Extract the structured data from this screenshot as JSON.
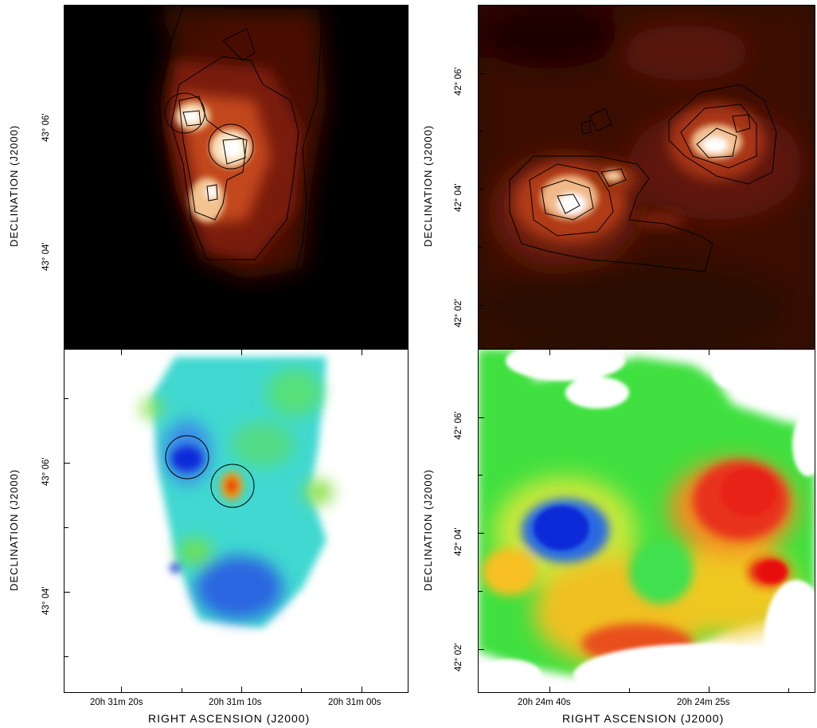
{
  "left_column": {
    "ylabel_top": "DECLINATION (J2000)",
    "ylabel_bottom": "DECLINATION (J2000)",
    "ytick_top_1": "43° 06'",
    "ytick_top_2": "43° 04'",
    "ytick_bottom_1": "43° 06'",
    "ytick_bottom_2": "43° 04'",
    "xticks": [
      "20h 31m 20s",
      "20h 31m 10s",
      "20h 31m 00s"
    ],
    "xlabel": "RIGHT ASCENSION (J2000)"
  },
  "right_column": {
    "ylabel_top": "DECLINATION (J2000)",
    "ylabel_bottom": "DECLINATION (J2000)",
    "ytick_top_1": "42° 06'",
    "ytick_top_2": "42° 04'",
    "ytick_top_3": "42° 02'",
    "ytick_bottom_1": "42° 06'",
    "ytick_bottom_2": "42° 04'",
    "ytick_bottom_3": "42° 02'",
    "xticks": [
      "20h 24m 40s",
      "20h 24m 25s"
    ],
    "xlabel": "RIGHT ASCENSION (J2000)"
  },
  "colors": {
    "intensity_background": "#000000",
    "intensity_peak": "#ffffff",
    "velocity_blue": "#0a2ad8",
    "velocity_green": "#38e038",
    "velocity_red": "#e81a10"
  }
}
